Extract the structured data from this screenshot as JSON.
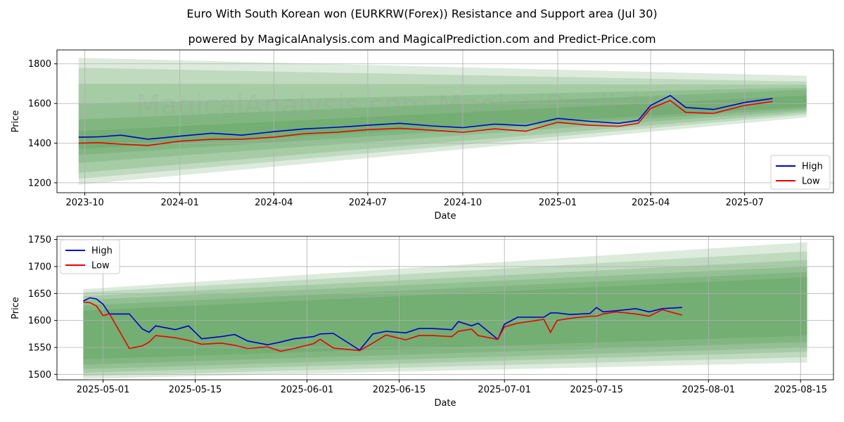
{
  "chart_data": [
    {
      "type": "line",
      "title": "Euro With South Korean won (EURKRW(Forex)) Resistance and Support area (Jul 30)",
      "subtitle": "powered by MagicalAnalysis.com and MagicalPrediction.com and Predict-Price.com",
      "xlabel": "Date",
      "ylabel": "Price",
      "x_ticks": [
        "2023-10",
        "2024-01",
        "2024-04",
        "2024-07",
        "2024-10",
        "2025-01",
        "2025-04",
        "2025-07"
      ],
      "y_ticks": [
        1200,
        1400,
        1600,
        1800
      ],
      "xlim": [
        "2023-09-04",
        "2025-09-25"
      ],
      "ylim": [
        1150,
        1870
      ],
      "grid": true,
      "legend": "bottom-right",
      "watermark": "MagicalAnalysis.com   MagicalPrediction.com",
      "x": [
        "2023-09-25",
        "2023-10-15",
        "2023-11-05",
        "2023-12-01",
        "2024-01-01",
        "2024-02-01",
        "2024-03-01",
        "2024-04-01",
        "2024-05-01",
        "2024-06-01",
        "2024-07-01",
        "2024-08-01",
        "2024-09-01",
        "2024-10-01",
        "2024-11-01",
        "2024-12-01",
        "2025-01-01",
        "2025-02-01",
        "2025-03-01",
        "2025-03-20",
        "2025-04-01",
        "2025-04-20",
        "2025-05-05",
        "2025-06-01",
        "2025-07-01",
        "2025-07-28"
      ],
      "series": [
        {
          "name": "High",
          "color": "#0000cc",
          "values": [
            1430,
            1432,
            1440,
            1420,
            1435,
            1450,
            1440,
            1458,
            1472,
            1480,
            1490,
            1500,
            1487,
            1478,
            1496,
            1488,
            1525,
            1510,
            1500,
            1515,
            1590,
            1640,
            1580,
            1570,
            1605,
            1625
          ]
        },
        {
          "name": "Low",
          "color": "#ee0000",
          "values": [
            1400,
            1402,
            1395,
            1388,
            1410,
            1420,
            1420,
            1430,
            1448,
            1455,
            1468,
            1475,
            1465,
            1455,
            1472,
            1460,
            1505,
            1490,
            1485,
            1500,
            1575,
            1615,
            1555,
            1550,
            1590,
            1610
          ]
        }
      ],
      "bands": {
        "x_start": "2023-09-25",
        "x_end": "2025-08-30",
        "color": "#2e8b2e",
        "ranges": [
          {
            "start": [
              1190,
              1830
            ],
            "end": [
              1530,
              1740
            ]
          },
          {
            "start": [
              1220,
              1780
            ],
            "end": [
              1545,
              1710
            ]
          },
          {
            "start": [
              1250,
              1700
            ],
            "end": [
              1555,
              1695
            ]
          },
          {
            "start": [
              1300,
              1600
            ],
            "end": [
              1565,
              1680
            ]
          },
          {
            "start": [
              1340,
              1520
            ],
            "end": [
              1575,
              1670
            ]
          },
          {
            "start": [
              1370,
              1460
            ],
            "end": [
              1585,
              1640
            ]
          }
        ]
      }
    },
    {
      "type": "line",
      "xlabel": "Date",
      "ylabel": "Price",
      "x_ticks": [
        "2025-05-01",
        "2025-05-15",
        "2025-06-01",
        "2025-06-15",
        "2025-07-01",
        "2025-07-15",
        "2025-08-01",
        "2025-08-15"
      ],
      "y_ticks": [
        1500,
        1550,
        1600,
        1650,
        1700,
        1750
      ],
      "xlim": [
        "2025-04-24",
        "2025-08-20"
      ],
      "ylim": [
        1490,
        1756
      ],
      "grid": true,
      "legend": "top-left",
      "x": [
        "2025-04-28",
        "2025-04-29",
        "2025-04-30",
        "2025-05-01",
        "2025-05-02",
        "2025-05-05",
        "2025-05-07",
        "2025-05-08",
        "2025-05-09",
        "2025-05-12",
        "2025-05-14",
        "2025-05-16",
        "2025-05-19",
        "2025-05-21",
        "2025-05-23",
        "2025-05-26",
        "2025-05-28",
        "2025-05-30",
        "2025-06-02",
        "2025-06-03",
        "2025-06-05",
        "2025-06-09",
        "2025-06-11",
        "2025-06-13",
        "2025-06-16",
        "2025-06-18",
        "2025-06-20",
        "2025-06-23",
        "2025-06-24",
        "2025-06-26",
        "2025-06-27",
        "2025-06-30",
        "2025-07-01",
        "2025-07-03",
        "2025-07-07",
        "2025-07-08",
        "2025-07-09",
        "2025-07-11",
        "2025-07-14",
        "2025-07-15",
        "2025-07-16",
        "2025-07-18",
        "2025-07-21",
        "2025-07-23",
        "2025-07-25",
        "2025-07-28"
      ],
      "series": [
        {
          "name": "High",
          "color": "#0000cc",
          "values": [
            1636,
            1642,
            1640,
            1630,
            1612,
            1612,
            1584,
            1578,
            1590,
            1583,
            1590,
            1566,
            1570,
            1574,
            1562,
            1555,
            1560,
            1566,
            1570,
            1575,
            1576,
            1545,
            1575,
            1580,
            1577,
            1585,
            1585,
            1583,
            1598,
            1590,
            1595,
            1565,
            1593,
            1606,
            1606,
            1614,
            1614,
            1611,
            1613,
            1624,
            1616,
            1618,
            1622,
            1616,
            1622,
            1624
          ]
        },
        {
          "name": "Low",
          "color": "#ee0000",
          "values": [
            1634,
            1633,
            1627,
            1609,
            1612,
            1548,
            1553,
            1560,
            1572,
            1568,
            1563,
            1556,
            1558,
            1554,
            1548,
            1551,
            1543,
            1548,
            1557,
            1565,
            1549,
            1544,
            1558,
            1573,
            1564,
            1572,
            1572,
            1570,
            1580,
            1584,
            1572,
            1565,
            1588,
            1595,
            1602,
            1578,
            1600,
            1604,
            1608,
            1608,
            1612,
            1616,
            1612,
            1608,
            1620,
            1610
          ]
        }
      ],
      "bands": {
        "x_start": "2025-04-28",
        "x_end": "2025-08-16",
        "color": "#2e8b2e",
        "ranges": [
          {
            "start": [
              1492,
              1658
            ],
            "end": [
              1522,
              1745
            ]
          },
          {
            "start": [
              1497,
              1652
            ],
            "end": [
              1532,
              1728
            ]
          },
          {
            "start": [
              1503,
              1645
            ],
            "end": [
              1542,
              1712
            ]
          },
          {
            "start": [
              1510,
              1638
            ],
            "end": [
              1550,
              1700
            ]
          },
          {
            "start": [
              1518,
              1628
            ],
            "end": [
              1560,
              1690
            ]
          },
          {
            "start": [
              1528,
              1618
            ],
            "end": [
              1572,
              1680
            ]
          }
        ]
      }
    }
  ]
}
